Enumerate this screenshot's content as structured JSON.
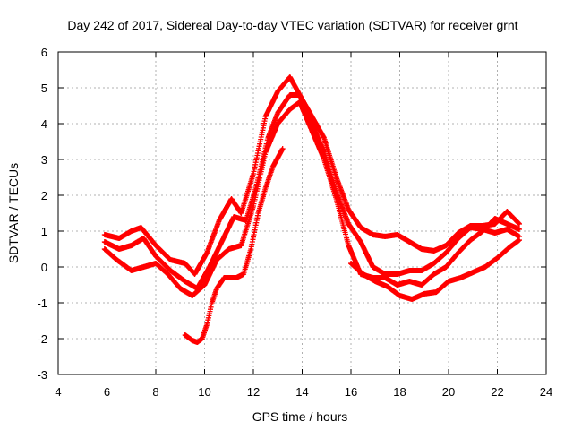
{
  "chart_data": {
    "type": "scatter",
    "title": "Day 242 of 2017, Sidereal Day-to-day VTEC variation (SDTVAR) for receiver grnt",
    "xlabel": "GPS time / hours",
    "ylabel": "SDTVAR / TECUs",
    "xlim": [
      4,
      24
    ],
    "ylim": [
      -3,
      6
    ],
    "x_ticks": [
      "4",
      "6",
      "8",
      "10",
      "12",
      "14",
      "16",
      "18",
      "20",
      "22",
      "24"
    ],
    "y_ticks": [
      "-3",
      "-2",
      "-1",
      "0",
      "1",
      "2",
      "3",
      "4",
      "5",
      "6"
    ],
    "grid": true,
    "marker": "+",
    "series_color": "#ff0000",
    "series": [
      {
        "name": "trace-a",
        "x": [
          5.9,
          6.5,
          7.0,
          7.4,
          8.0,
          8.6,
          9.2,
          9.6,
          10.1,
          10.6,
          11.1,
          11.5,
          12.0,
          12.5,
          13.0,
          13.5,
          13.9,
          14.4,
          14.9,
          15.4,
          15.9,
          16.4,
          16.9,
          17.4,
          17.9,
          18.4,
          18.9,
          19.4,
          19.9,
          20.4,
          20.9,
          21.4,
          21.9,
          22.4,
          22.9
        ],
        "values": [
          0.9,
          0.8,
          1.0,
          1.1,
          0.6,
          0.2,
          0.1,
          -0.2,
          0.4,
          1.3,
          1.9,
          1.5,
          2.6,
          4.2,
          4.9,
          5.3,
          4.8,
          4.2,
          3.6,
          2.5,
          1.6,
          1.1,
          0.9,
          0.85,
          0.9,
          0.7,
          0.5,
          0.45,
          0.6,
          0.95,
          1.15,
          1.15,
          1.2,
          1.55,
          1.2
        ]
      },
      {
        "name": "trace-b",
        "x": [
          5.9,
          6.5,
          7.0,
          7.5,
          8.0,
          8.6,
          9.2,
          9.7,
          10.2,
          10.7,
          11.2,
          11.7,
          12.1,
          12.6,
          13.0,
          13.5,
          13.9,
          14.4,
          14.9,
          15.4,
          15.9,
          16.4,
          16.9,
          17.4,
          17.9,
          18.4,
          18.9,
          19.4,
          19.9,
          20.4,
          20.9,
          21.4,
          21.9,
          22.4,
          22.9
        ],
        "values": [
          0.7,
          0.5,
          0.6,
          0.8,
          0.3,
          -0.1,
          -0.4,
          -0.6,
          0.0,
          0.7,
          1.4,
          1.3,
          2.2,
          3.6,
          4.3,
          4.8,
          4.8,
          4.0,
          3.2,
          2.1,
          1.2,
          0.7,
          0.0,
          -0.2,
          -0.2,
          -0.1,
          -0.1,
          0.1,
          0.4,
          0.8,
          1.1,
          1.05,
          0.95,
          1.05,
          0.85
        ]
      },
      {
        "name": "trace-c",
        "x": [
          5.9,
          6.4,
          7.0,
          7.5,
          8.0,
          8.5,
          9.0,
          9.5,
          10.0,
          10.5,
          11.0,
          11.5,
          12.0,
          12.5,
          13.0,
          13.5,
          13.9,
          14.4,
          14.9,
          15.4,
          15.9,
          16.4,
          16.9,
          17.4,
          17.9,
          18.4,
          18.9,
          19.4,
          19.9,
          20.4,
          20.9,
          21.4,
          21.9,
          22.4,
          22.9
        ],
        "values": [
          0.5,
          0.2,
          -0.1,
          0.0,
          0.1,
          -0.2,
          -0.6,
          -0.8,
          -0.5,
          0.2,
          0.5,
          0.6,
          1.7,
          3.2,
          4.0,
          4.4,
          4.6,
          3.8,
          3.0,
          1.9,
          0.6,
          -0.2,
          -0.3,
          -0.3,
          -0.5,
          -0.4,
          -0.5,
          -0.2,
          0.0,
          0.4,
          0.75,
          1.0,
          1.35,
          1.2,
          1.05
        ]
      },
      {
        "name": "trace-d",
        "x": [
          9.2,
          9.5,
          9.7,
          9.9,
          10.1,
          10.3,
          10.5,
          10.8,
          11.0,
          11.3,
          11.6,
          11.9,
          12.2,
          12.5,
          12.8,
          13.2
        ],
        "values": [
          -1.9,
          -2.05,
          -2.1,
          -2.0,
          -1.6,
          -1.0,
          -0.6,
          -0.3,
          -0.3,
          -0.3,
          -0.2,
          0.5,
          1.5,
          2.2,
          2.8,
          3.3
        ]
      },
      {
        "name": "trace-e",
        "x": [
          16.0,
          16.5,
          17.0,
          17.5,
          18.0,
          18.5,
          19.0,
          19.5,
          20.0,
          20.5,
          21.0,
          21.5,
          22.0,
          22.5,
          22.9
        ],
        "values": [
          0.1,
          -0.2,
          -0.4,
          -0.55,
          -0.8,
          -0.9,
          -0.75,
          -0.7,
          -0.4,
          -0.3,
          -0.15,
          0.0,
          0.25,
          0.55,
          0.75
        ]
      }
    ]
  }
}
